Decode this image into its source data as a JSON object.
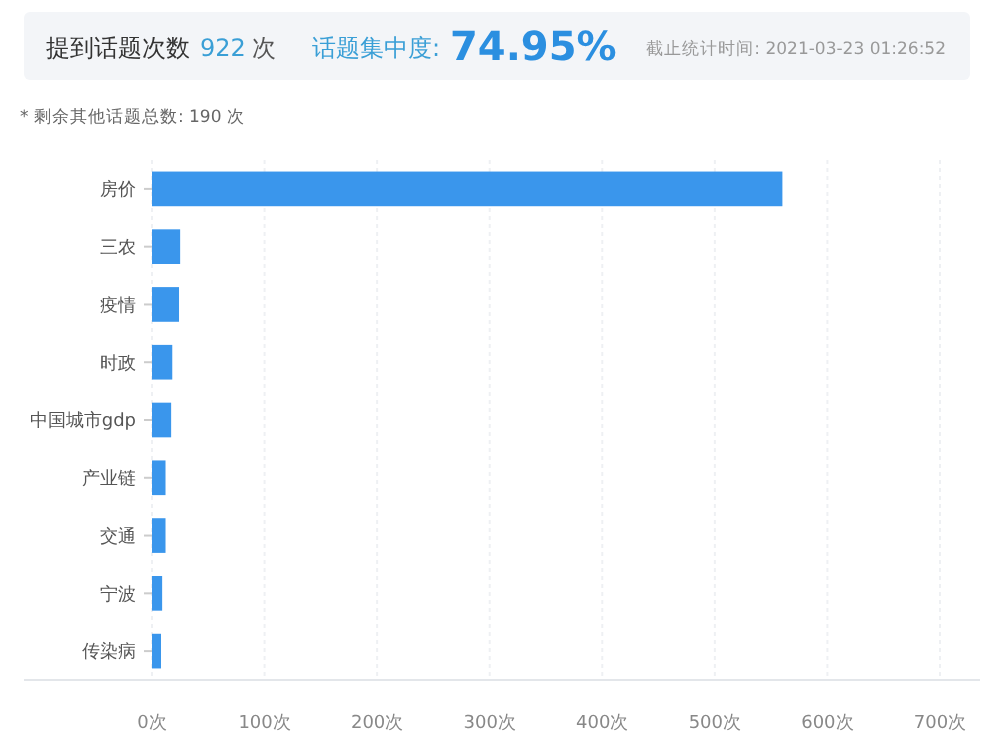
{
  "chart_data": {
    "type": "bar",
    "orientation": "horizontal",
    "title": "提到话题次数",
    "annotations": [
      "922",
      "次",
      "话题集中度:",
      "74.95%",
      "截止统计时间: 2021-03-23 01:26:52",
      "* 剩余其他话题总数: 190 次"
    ],
    "categories": [
      "房价",
      "三农",
      "疫情",
      "时政",
      "中国城市gdp",
      "产业链",
      "交通",
      "宁波",
      "传染病"
    ],
    "values": [
      560,
      25,
      24,
      18,
      17,
      12,
      12,
      9,
      8
    ],
    "color": "#3a96ec",
    "xlim": [
      0,
      700
    ],
    "xticks": [
      {
        "value": 0,
        "label": "0次"
      },
      {
        "value": 100,
        "label": "100次"
      },
      {
        "value": 200,
        "label": "200次"
      },
      {
        "value": 300,
        "label": "300次"
      },
      {
        "value": 400,
        "label": "400次"
      },
      {
        "value": 500,
        "label": "500次"
      },
      {
        "value": 600,
        "label": "600次"
      },
      {
        "value": 700,
        "label": "700次"
      }
    ],
    "grid": "x"
  }
}
